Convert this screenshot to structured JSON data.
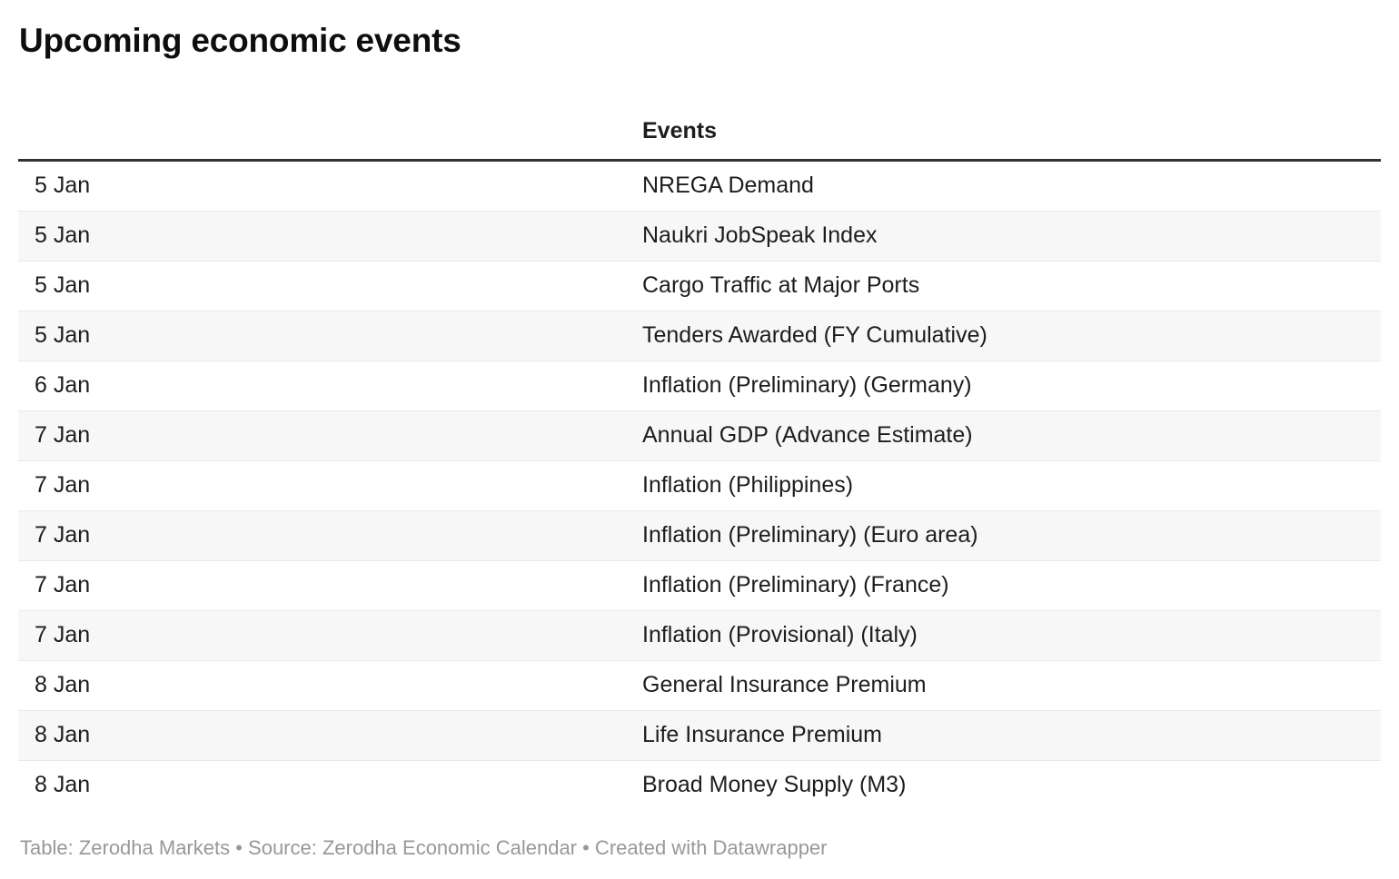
{
  "chart_data": {
    "type": "table",
    "title": "Upcoming economic events",
    "columns": [
      "",
      "Events"
    ],
    "rows": [
      [
        "5 Jan",
        "NREGA Demand"
      ],
      [
        "5 Jan",
        "Naukri JobSpeak Index"
      ],
      [
        "5 Jan",
        "Cargo Traffic at Major Ports"
      ],
      [
        "5 Jan",
        "Tenders Awarded (FY Cumulative)"
      ],
      [
        "6 Jan",
        "Inflation (Preliminary) (Germany)"
      ],
      [
        "7 Jan",
        "Annual GDP (Advance Estimate)"
      ],
      [
        "7 Jan",
        "Inflation (Philippines)"
      ],
      [
        "7 Jan",
        "Inflation (Preliminary) (Euro area)"
      ],
      [
        "7 Jan",
        "Inflation (Preliminary) (France)"
      ],
      [
        "7 Jan",
        "Inflation (Provisional) (Italy)"
      ],
      [
        "8 Jan",
        "General Insurance Premium"
      ],
      [
        "8 Jan",
        "Life Insurance Premium"
      ],
      [
        "8 Jan",
        "Broad Money Supply (M3)"
      ]
    ],
    "footer": "Table: Zerodha Markets • Source: Zerodha Economic Calendar • Created with Datawrapper",
    "layout": {
      "striped": true,
      "legend_position": "none",
      "grid": "row-borders"
    },
    "colors": {
      "background": "#ffffff",
      "stripe": "#f7f7f7",
      "row_border": "#e9e9e9",
      "header_rule": "#333333",
      "text": "#1d1d1d",
      "title_text": "#0e0e0e",
      "footer_text": "#989898"
    }
  }
}
